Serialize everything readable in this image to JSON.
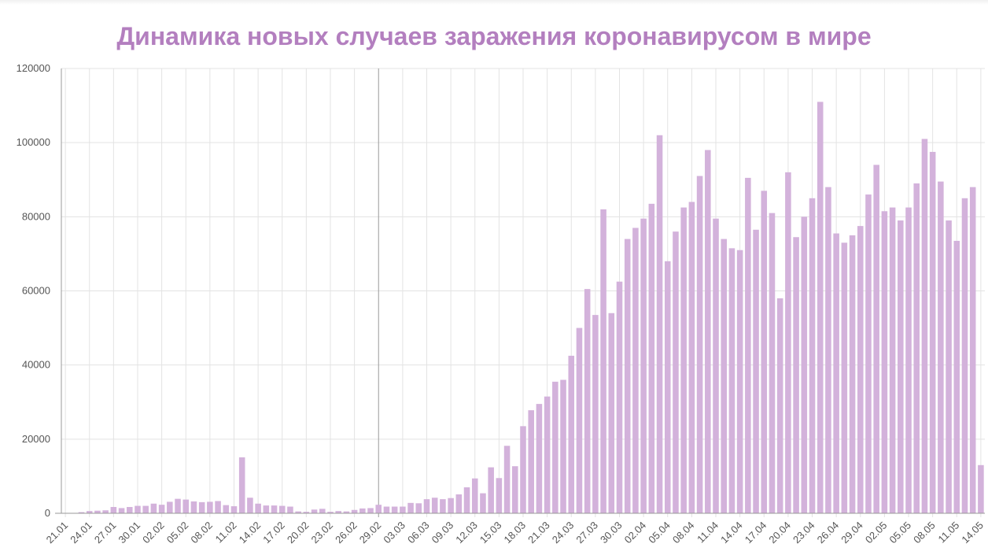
{
  "chart_data": {
    "type": "bar",
    "title": "Динамика новых случаев заражения коронавирусом в мире",
    "xlabel": "",
    "ylabel": "",
    "ylim": [
      0,
      120000
    ],
    "yticks": [
      0,
      20000,
      40000,
      60000,
      80000,
      100000,
      120000
    ],
    "grid": true,
    "bar_color": "#d3b2db",
    "title_color": "#b37fbf",
    "categories": [
      "21.01",
      "22.01",
      "23.01",
      "24.01",
      "25.01",
      "26.01",
      "27.01",
      "28.01",
      "29.01",
      "30.01",
      "31.01",
      "01.02",
      "02.02",
      "03.02",
      "04.02",
      "05.02",
      "06.02",
      "07.02",
      "08.02",
      "09.02",
      "10.02",
      "11.02",
      "12.02",
      "13.02",
      "14.02",
      "15.02",
      "16.02",
      "17.02",
      "18.02",
      "19.02",
      "20.02",
      "21.02",
      "22.02",
      "23.02",
      "24.02",
      "25.02",
      "26.02",
      "27.02",
      "28.02",
      "29.02",
      "01.03",
      "02.03",
      "03.03",
      "04.03",
      "05.03",
      "06.03",
      "07.03",
      "08.03",
      "09.03",
      "10.03",
      "11.03",
      "12.03",
      "13.03",
      "14.03",
      "15.03",
      "16.03",
      "17.03",
      "18.03",
      "19.03",
      "20.03",
      "21.03",
      "22.03",
      "23.03",
      "24.03",
      "25.03",
      "26.03",
      "27.03",
      "28.03",
      "29.03",
      "30.03",
      "31.03",
      "01.04",
      "02.04",
      "03.04",
      "04.04",
      "05.04",
      "06.04",
      "07.04",
      "08.04",
      "09.04",
      "10.04",
      "11.04",
      "12.04",
      "13.04",
      "14.04",
      "15.04",
      "16.04",
      "17.04",
      "18.04",
      "19.04",
      "20.04",
      "21.04",
      "22.04",
      "23.04",
      "24.04",
      "25.04",
      "26.04",
      "27.04",
      "28.04",
      "29.04",
      "30.04",
      "01.05",
      "02.05",
      "03.05",
      "04.05",
      "05.05",
      "06.05",
      "07.05",
      "08.05",
      "09.05",
      "10.05",
      "11.05",
      "12.05",
      "13.05",
      "14.05"
    ],
    "values": [
      0,
      100,
      300,
      600,
      700,
      800,
      1700,
      1400,
      1700,
      2000,
      2000,
      2600,
      2300,
      3100,
      3900,
      3700,
      3200,
      3000,
      3100,
      3300,
      2200,
      1900,
      15100,
      4200,
      2600,
      2100,
      2100,
      2000,
      1800,
      500,
      400,
      1000,
      1200,
      400,
      600,
      500,
      900,
      1300,
      1400,
      2300,
      1800,
      1800,
      1800,
      2800,
      2700,
      3800,
      4200,
      3800,
      4100,
      5100,
      7000,
      9400,
      5400,
      12400,
      9500,
      18200,
      12700,
      23500,
      27800,
      29500,
      31500,
      35500,
      36000,
      42500,
      50000,
      60500,
      53500,
      82000,
      54000,
      62500,
      74000,
      77000,
      79500,
      83500,
      102000,
      68000,
      76000,
      82500,
      84000,
      91000,
      98000,
      79500,
      74000,
      71500,
      71000,
      90500,
      76500,
      87000,
      81000,
      58000,
      92000,
      74500,
      80000,
      85000,
      111000,
      88000,
      75500,
      73000,
      75000,
      77500,
      86000,
      94000,
      81500,
      82500,
      79000,
      82500,
      89000,
      101000,
      97500,
      89500,
      79000,
      73500,
      85000,
      88000,
      13000
    ],
    "xtick_labels": [
      "21.01",
      "24.01",
      "27.01",
      "30.01",
      "02.02",
      "05.02",
      "08.02",
      "11.02",
      "14.02",
      "17.02",
      "20.02",
      "23.02",
      "26.02",
      "29.02",
      "03.03",
      "06.03",
      "09.03",
      "12.03",
      "15.03",
      "18.03",
      "21.03",
      "24.03",
      "27.03",
      "30.03",
      "02.04",
      "05.04",
      "08.04",
      "11.04",
      "14.04",
      "17.04",
      "20.04",
      "23.04",
      "26.04",
      "29.04",
      "02.05",
      "05.05",
      "08.05",
      "11.05",
      "14.05"
    ]
  }
}
